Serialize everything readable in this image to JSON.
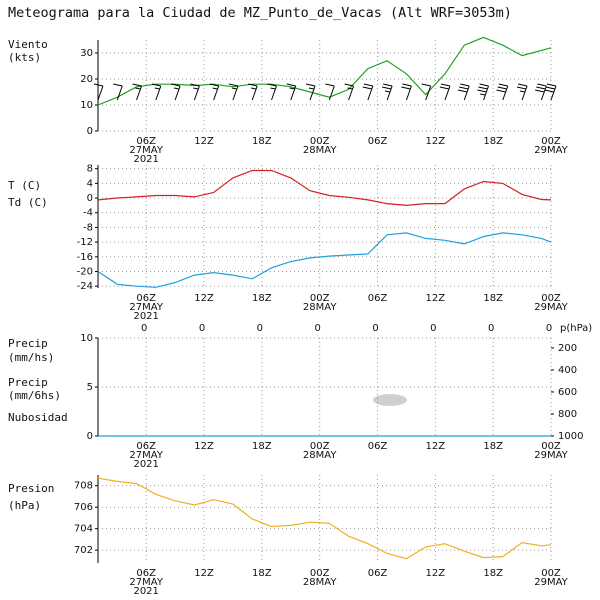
{
  "title": "Meteograma para la Ciudad de MZ_Punto_de_Vacas (Alt WRF=3053m)",
  "chart_data": [
    {
      "type": "line",
      "barbs": true,
      "ylabels": [
        {
          "text": "Viento",
          "color": "#22a022"
        },
        {
          "text": "(kts)",
          "color": "#22a022"
        }
      ],
      "x": [
        1,
        3,
        5,
        7,
        9,
        11,
        13,
        15,
        17,
        19,
        21,
        23,
        25,
        27,
        29,
        31,
        33,
        35,
        37,
        39,
        41,
        43,
        45,
        47,
        48
      ],
      "series": [
        {
          "color": "#22a022",
          "values": [
            10,
            13,
            17,
            18,
            18,
            17.5,
            18,
            17,
            18,
            18,
            17,
            15,
            13,
            16,
            24,
            27,
            22,
            14,
            22,
            33,
            36,
            33,
            29,
            31,
            32
          ]
        }
      ],
      "xlim": [
        1,
        48
      ],
      "xticks": [
        {
          "value": 6,
          "label": "06Z"
        },
        {
          "value": 12,
          "label": "12Z"
        },
        {
          "value": 18,
          "label": "18Z"
        },
        {
          "value": 24,
          "label": "00Z"
        },
        {
          "value": 30,
          "label": "06Z"
        },
        {
          "value": 36,
          "label": "12Z"
        },
        {
          "value": 42,
          "label": "18Z"
        },
        {
          "value": 48,
          "label": "00Z"
        }
      ],
      "date_labels": [
        {
          "value": 6,
          "label": "27MAY"
        },
        {
          "value": 24,
          "label": "28MAY"
        },
        {
          "value": 48,
          "label": "29MAY"
        }
      ],
      "year_labels": [
        {
          "value": 6,
          "label": "2021"
        }
      ],
      "ylim": [
        0,
        35
      ],
      "yticks": [
        0,
        10,
        20,
        30
      ],
      "grid": true
    },
    {
      "type": "line",
      "ylabels": [
        {
          "text": "T (C)",
          "color": "#d42020"
        },
        {
          "text": "Td (C)",
          "color": "#20a0e0"
        }
      ],
      "x": [
        1,
        3,
        5,
        7,
        9,
        11,
        13,
        15,
        17,
        19,
        21,
        23,
        25,
        27,
        29,
        31,
        33,
        35,
        37,
        39,
        41,
        43,
        45,
        47,
        48
      ],
      "series": [
        {
          "color": "#d42020",
          "values": [
            -0.5,
            0,
            0.3,
            0.7,
            0.7,
            0.3,
            1.5,
            5.5,
            7.5,
            7.5,
            5.5,
            2,
            0.7,
            0.2,
            -0.5,
            -1.5,
            -2,
            -1.5,
            -1.5,
            2.5,
            4.5,
            4,
            1,
            -0.4,
            -0.5
          ]
        },
        {
          "color": "#20a0e0",
          "values": [
            -20,
            -23.5,
            -24,
            -24.3,
            -23,
            -21,
            -20.3,
            -21,
            -22,
            -19,
            -17.3,
            -16.3,
            -15.8,
            -15.5,
            -15.2,
            -10,
            -9.5,
            -11,
            -11.5,
            -12.5,
            -10.5,
            -9.5,
            -10,
            -11,
            -12
          ]
        }
      ],
      "xlim": [
        1,
        48
      ],
      "xticks": [
        {
          "value": 6,
          "label": "06Z"
        },
        {
          "value": 12,
          "label": "12Z"
        },
        {
          "value": 18,
          "label": "18Z"
        },
        {
          "value": 24,
          "label": "00Z"
        },
        {
          "value": 30,
          "label": "06Z"
        },
        {
          "value": 36,
          "label": "12Z"
        },
        {
          "value": 42,
          "label": "18Z"
        },
        {
          "value": 48,
          "label": "00Z"
        }
      ],
      "date_labels": [
        {
          "value": 6,
          "label": "27MAY"
        },
        {
          "value": 24,
          "label": "28MAY"
        },
        {
          "value": 48,
          "label": "29MAY"
        }
      ],
      "year_labels": [
        {
          "value": 6,
          "label": "2021"
        }
      ],
      "ylim": [
        -24.5,
        9
      ],
      "yticks": [
        8,
        4,
        0,
        -4,
        -8,
        -12,
        -16,
        -20,
        -24
      ],
      "grid": true
    },
    {
      "type": "line",
      "ylabels": [
        {
          "text": "Precip",
          "color": "#20a0e0"
        },
        {
          "text": "(mm/hs)",
          "color": "#20a0e0"
        },
        {
          "text": "Precip",
          "color": "#22a022"
        },
        {
          "text": "(mm/6hs)",
          "color": "#22a022"
        },
        {
          "text": "Nubosidad",
          "color": "#333333"
        }
      ],
      "x": [
        1,
        3,
        5,
        7,
        9,
        11,
        13,
        15,
        17,
        19,
        21,
        23,
        25,
        27,
        29,
        31,
        33,
        35,
        37,
        39,
        41,
        43,
        45,
        47,
        48
      ],
      "series": [
        {
          "color": "#20a0e0",
          "values": [
            0,
            0,
            0,
            0,
            0,
            0,
            0,
            0,
            0,
            0,
            0,
            0,
            0,
            0,
            0,
            0,
            0,
            0,
            0,
            0,
            0,
            0,
            0,
            0,
            0
          ]
        }
      ],
      "top_labels": {
        "color": "#22a022",
        "x": [
          6,
          12,
          18,
          24,
          30,
          36,
          42,
          48
        ],
        "values": [
          0,
          0,
          0,
          0,
          0,
          0,
          0,
          0
        ]
      },
      "xlim": [
        1,
        48
      ],
      "xticks": [
        {
          "value": 6,
          "label": "06Z"
        },
        {
          "value": 12,
          "label": "12Z"
        },
        {
          "value": 18,
          "label": "18Z"
        },
        {
          "value": 24,
          "label": "00Z"
        },
        {
          "value": 30,
          "label": "06Z"
        },
        {
          "value": 36,
          "label": "12Z"
        },
        {
          "value": 42,
          "label": "18Z"
        },
        {
          "value": 48,
          "label": "00Z"
        }
      ],
      "date_labels": [
        {
          "value": 6,
          "label": "27MAY"
        },
        {
          "value": 24,
          "label": "28MAY"
        },
        {
          "value": 48,
          "label": "29MAY"
        }
      ],
      "year_labels": [
        {
          "value": 6,
          "label": "2021"
        }
      ],
      "ylim": [
        0,
        10
      ],
      "yticks": [
        0,
        5,
        10
      ],
      "grid": true,
      "y2label": "p(hPa)",
      "y2lim": [
        1000,
        110
      ],
      "y2ticks": [
        200,
        400,
        600,
        800,
        1000
      ]
    },
    {
      "type": "line",
      "ylabels": [
        {
          "text": "Presion",
          "color": "#f0a800"
        },
        {
          "text": "(hPa)",
          "color": "#f0a800"
        }
      ],
      "x": [
        1,
        3,
        5,
        7,
        9,
        11,
        13,
        15,
        17,
        19,
        21,
        23,
        25,
        27,
        29,
        31,
        33,
        35,
        37,
        39,
        41,
        43,
        45,
        47,
        48
      ],
      "series": [
        {
          "color": "#f0b020",
          "values": [
            708.7,
            708.4,
            708.2,
            707.2,
            706.6,
            706.2,
            706.7,
            706.3,
            704.9,
            704.2,
            704.3,
            704.6,
            704.5,
            703.3,
            702.6,
            701.7,
            701.2,
            702.3,
            702.6,
            701.9,
            701.3,
            701.4,
            702.7,
            702.4,
            702.5
          ]
        }
      ],
      "xlim": [
        1,
        48
      ],
      "xticks": [
        {
          "value": 6,
          "label": "06Z"
        },
        {
          "value": 12,
          "label": "12Z"
        },
        {
          "value": 18,
          "label": "18Z"
        },
        {
          "value": 24,
          "label": "00Z"
        },
        {
          "value": 30,
          "label": "06Z"
        },
        {
          "value": 36,
          "label": "12Z"
        },
        {
          "value": 42,
          "label": "18Z"
        },
        {
          "value": 48,
          "label": "00Z"
        }
      ],
      "date_labels": [
        {
          "value": 6,
          "label": "27MAY"
        },
        {
          "value": 24,
          "label": "28MAY"
        },
        {
          "value": 48,
          "label": "29MAY"
        }
      ],
      "year_labels": [
        {
          "value": 6,
          "label": "2021"
        }
      ],
      "ylim": [
        700.8,
        709
      ],
      "yticks": [
        702,
        704,
        706,
        708
      ],
      "grid": true
    }
  ]
}
